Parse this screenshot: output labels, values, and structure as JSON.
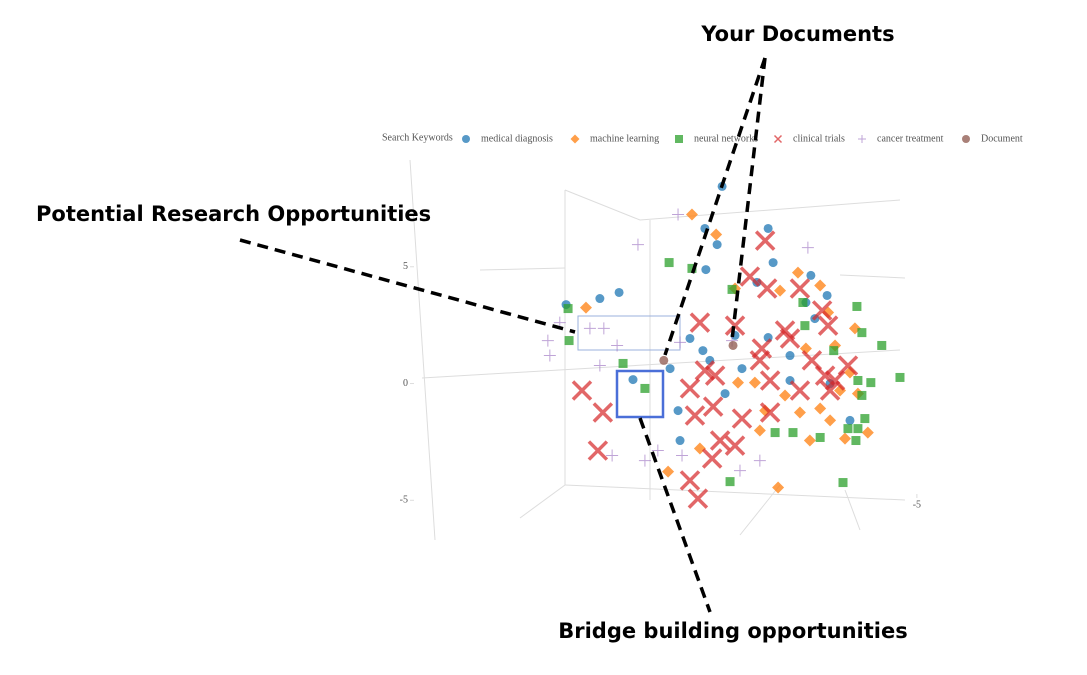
{
  "chart_data": {
    "type": "scatter",
    "legend_title": "Search Keywords",
    "xlim": [
      10,
      -6
    ],
    "ylim": [
      -6.7,
      10
    ],
    "xticks": [
      -5
    ],
    "yticks": [
      -5,
      0,
      5
    ],
    "series": [
      {
        "name": "medical diagnosis",
        "color": "#1f77b4",
        "marker": "circle",
        "x": [
          5.59,
          4.57,
          3.99,
          0.88,
          1.4,
          1.03,
          1.37,
          -0.51,
          -0.66,
          -1.8,
          -2.29,
          -0.17,
          0.49,
          -0.51,
          -1.92,
          -1.17,
          1.46,
          2.45,
          3.57,
          2.21,
          2.15,
          0.79,
          0.28,
          -2.38,
          -1.17,
          1.85,
          -2.98,
          1.25,
          -1.65
        ],
        "values": [
          3.38,
          3.64,
          3.9,
          8.44,
          6.64,
          5.95,
          4.88,
          6.64,
          5.18,
          4.63,
          3.77,
          4.33,
          2.06,
          1.97,
          2.78,
          1.2,
          1.41,
          0.64,
          0.17,
          -1.16,
          -2.44,
          -0.43,
          0.64,
          0,
          0.13,
          1.93,
          -1.58,
          0.99,
          3.47
        ]
      },
      {
        "name": "machine learning",
        "color": "#ff7f0e",
        "marker": "diamond",
        "x": [
          4.99,
          1.79,
          1.06,
          0.49,
          -0.87,
          -1.41,
          -2.08,
          -2.32,
          -3.13,
          -2.53,
          -1.65,
          0.4,
          -0.11,
          -1.02,
          -1.47,
          -2.08,
          -2.68,
          -3.22,
          -2.98,
          -3.52,
          -2.83,
          -1.77,
          -0.42,
          2.51,
          -0.81,
          -0.26,
          -2.38,
          1.55
        ],
        "values": [
          3.25,
          7.24,
          6.38,
          4.07,
          3.98,
          4.75,
          4.2,
          3.04,
          2.36,
          1.63,
          1.5,
          0.04,
          0.04,
          -0.51,
          -1.24,
          -1.07,
          -0.3,
          -0.43,
          0.47,
          -2.1,
          -2.36,
          -2.44,
          -1.16,
          -3.77,
          -4.45,
          -2.01,
          -1.58,
          -2.78
        ]
      },
      {
        "name": "neural networks",
        "color": "#2ca02c",
        "marker": "square",
        "x": [
          5.53,
          5.5,
          2.48,
          1.79,
          3.87,
          3.21,
          0.58,
          -1.56,
          -3.19,
          -3.34,
          -3.94,
          -4.49,
          -2.49,
          -3.61,
          -3.22,
          -3.43,
          -3.22,
          -2.92,
          -2.08,
          -1.26,
          -0.72,
          0.64,
          -2.77,
          -3.34,
          -1.62,
          -3.16
        ],
        "values": [
          3.21,
          1.84,
          5.18,
          4.93,
          0.86,
          -0.21,
          4.03,
          3.47,
          3.3,
          2.18,
          1.63,
          0.26,
          1.41,
          0.04,
          0.13,
          -1.5,
          -1.93,
          -1.93,
          -2.31,
          -2.1,
          -2.1,
          -4.2,
          -4.24,
          -0.51,
          2.48,
          -2.44
        ]
      },
      {
        "name": "clinical trials",
        "color": "#d62728",
        "marker": "x",
        "x": [
          -0.42,
          -0.48,
          0.04,
          -1.47,
          -2.14,
          -2.32,
          1.55,
          0.49,
          -0.32,
          -1.17,
          -1.83,
          -2.92,
          -2.53,
          -2.23,
          -0.57,
          1.09,
          1.4,
          1.85,
          1.15,
          1.7,
          0.28,
          -0.57,
          -1.47,
          0.94,
          0.49,
          1.18,
          1.85,
          1.61,
          5.11,
          4.48,
          4.63,
          -0.26,
          -2.38,
          -1.02
        ],
        "values": [
          6.12,
          4.07,
          4.58,
          4.07,
          3.13,
          2.48,
          2.61,
          2.48,
          1.5,
          1.93,
          0.99,
          0.77,
          0.13,
          0.34,
          0.13,
          0.34,
          0.56,
          -0.21,
          -0.99,
          -1.37,
          -1.5,
          -1.24,
          -0.3,
          -2.44,
          -2.66,
          -3.21,
          -4.15,
          -4.93,
          -0.3,
          -1.24,
          -2.87,
          0.99,
          -0.3,
          2.27
        ]
      },
      {
        "name": "cancer treatment",
        "color": "#9467bd",
        "marker": "cross",
        "x": [
          2.21,
          3.42,
          -1.71,
          4.87,
          4.45,
          6.14,
          6.08,
          5.78,
          4.57,
          4.05,
          2.15,
          0.58,
          0.34,
          -0.26,
          3.21,
          4.2,
          2.82,
          2.09
        ],
        "values": [
          7.24,
          5.95,
          5.82,
          2.36,
          2.36,
          1.84,
          1.2,
          2.61,
          0.77,
          1.63,
          1.76,
          1.84,
          -3.73,
          -3.3,
          -3.3,
          -3.08,
          -2.87,
          -3.08
        ]
      },
      {
        "name": "Document",
        "color": "#8c564b",
        "marker": "circle",
        "x": [
          2.64,
          0.55
        ],
        "values": [
          0.99,
          1.63
        ]
      }
    ]
  },
  "annotations": {
    "your_documents": "Your Documents",
    "research": "Potential Research Opportunities",
    "bridge": "Bridge building opportunities"
  }
}
